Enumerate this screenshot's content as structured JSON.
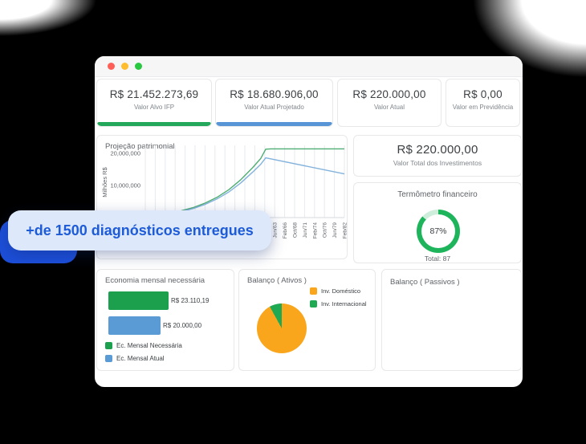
{
  "badge": {
    "text": "+de 1500 diagnósticos entregues",
    "bg": "#dde9fb",
    "text_color": "#1d5bd8",
    "accent_color": "#1d4fd9"
  },
  "stat_cards": [
    {
      "value": "R$ 21.452.273,69",
      "label": "Valor Alvo IFP",
      "accent": "#22a75b"
    },
    {
      "value": "R$ 18.680.906,00",
      "label": "Valor Atual Projetado",
      "accent": "#5895d6"
    },
    {
      "value": "R$ 220.000,00",
      "label": "Valor Atual",
      "accent": null
    },
    {
      "value": "R$ 0,00",
      "label": "Valor em Previdência",
      "accent": null
    }
  ],
  "investments_card": {
    "value": "R$ 220.000,00",
    "label": "Valor Total dos Investimentos"
  },
  "thermometer": {
    "title": "Termômetro financeiro",
    "percent_label": "87%",
    "total_label": "Total: 87",
    "value": 87,
    "color": "#1db45b",
    "track_color": "#cdeeda"
  },
  "passivos_panel": {
    "title": "Balanço ( Passivos )"
  },
  "chart_data": [
    {
      "type": "line",
      "title": "Projeção patrimonial",
      "ylabel": "Milhões R$",
      "ylim": [
        0,
        22.5
      ],
      "yticks": [
        {
          "label": "20,000,000",
          "value": 20
        },
        {
          "label": "10,000,000",
          "value": 10
        }
      ],
      "gridline_count": 21,
      "grid": true,
      "x_tick_labels": [
        "Jun/63",
        "Feb/66",
        "Oct/68",
        "Jun/71",
        "Feb/74",
        "Oct/76",
        "Jun/79",
        "Feb/82"
      ],
      "series": [
        {
          "color": "#4fae73",
          "points": [
            [
              0,
              0.3
            ],
            [
              0.06,
              0.7
            ],
            [
              0.12,
              1.3
            ],
            [
              0.18,
              2.1
            ],
            [
              0.24,
              3.1
            ],
            [
              0.3,
              4.5
            ],
            [
              0.36,
              6.3
            ],
            [
              0.42,
              8.7
            ],
            [
              0.48,
              11.8
            ],
            [
              0.54,
              15.6
            ],
            [
              0.58,
              18.4
            ],
            [
              0.605,
              21.3
            ],
            [
              0.63,
              21.4
            ],
            [
              1,
              21.4
            ]
          ]
        },
        {
          "color": "#83b2dc",
          "points": [
            [
              0,
              0.25
            ],
            [
              0.06,
              0.6
            ],
            [
              0.12,
              1.1
            ],
            [
              0.18,
              1.85
            ],
            [
              0.24,
              2.8
            ],
            [
              0.3,
              4.1
            ],
            [
              0.36,
              5.8
            ],
            [
              0.42,
              8.0
            ],
            [
              0.48,
              10.8
            ],
            [
              0.54,
              14.2
            ],
            [
              0.58,
              16.6
            ],
            [
              0.605,
              18.6
            ],
            [
              1,
              13.6
            ]
          ]
        }
      ]
    },
    {
      "type": "bar",
      "title": "Economia mensal necessária",
      "orientation": "horizontal",
      "bars": [
        {
          "name": "Ec. Mensal Necessária",
          "value_label": "R$ 23.110,19",
          "value": 23110.19,
          "color": "#1ca04e"
        },
        {
          "name": "Ec. Mensal Atual",
          "value_label": "R$ 20.000,00",
          "value": 20000.0,
          "color": "#5b9bd5"
        }
      ]
    },
    {
      "type": "pie",
      "title": "Balanço ( Ativos )",
      "slices": [
        {
          "label": "Inv. Doméstico",
          "value": 92,
          "color": "#f9a61c"
        },
        {
          "label": "Inv. Internacional",
          "value": 8,
          "color": "#1fa953"
        }
      ]
    },
    {
      "type": "doughnut",
      "title": "Termômetro financeiro",
      "value": 87,
      "max": 100,
      "center_label": "87%",
      "sub_label": "Total: 87"
    }
  ]
}
